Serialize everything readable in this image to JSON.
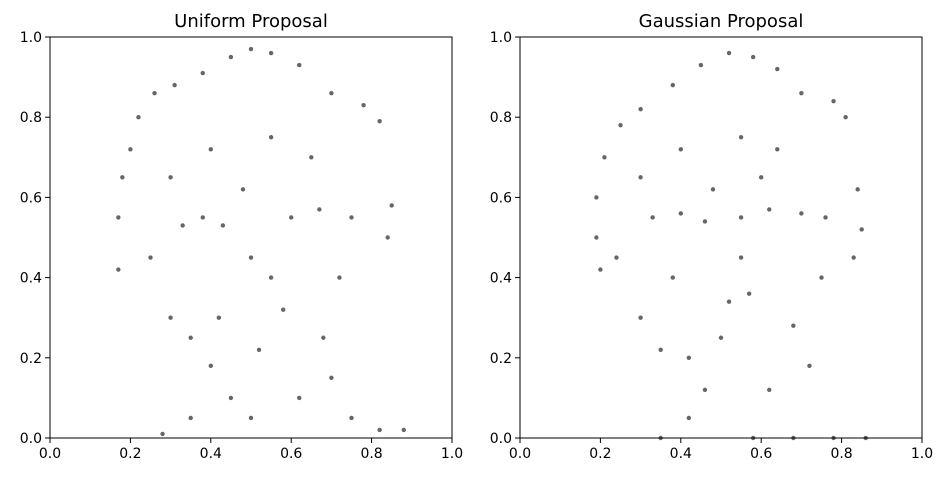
{
  "chart_data": [
    {
      "type": "scatter",
      "title": "Uniform Proposal",
      "xlabel": "",
      "ylabel": "",
      "xlim": [
        0.0,
        1.0
      ],
      "ylim": [
        0.0,
        1.0
      ],
      "x_ticks": [
        "0.0",
        "0.2",
        "0.4",
        "0.6",
        "0.8",
        "1.0"
      ],
      "y_ticks": [
        "0.0",
        "0.2",
        "0.4",
        "0.6",
        "0.8",
        "1.0"
      ],
      "grid": false,
      "marker_color": "#000000",
      "marker_alpha": 0.6,
      "series": [
        {
          "points": [
            [
              0.45,
              0.95
            ],
            [
              0.5,
              0.97
            ],
            [
              0.55,
              0.96
            ],
            [
              0.62,
              0.93
            ],
            [
              0.38,
              0.91
            ],
            [
              0.31,
              0.88
            ],
            [
              0.26,
              0.86
            ],
            [
              0.7,
              0.86
            ],
            [
              0.78,
              0.83
            ],
            [
              0.82,
              0.79
            ],
            [
              0.22,
              0.8
            ],
            [
              0.2,
              0.72
            ],
            [
              0.18,
              0.65
            ],
            [
              0.17,
              0.55
            ],
            [
              0.17,
              0.42
            ],
            [
              0.85,
              0.58
            ],
            [
              0.84,
              0.5
            ],
            [
              0.33,
              0.53
            ],
            [
              0.38,
              0.55
            ],
            [
              0.43,
              0.53
            ],
            [
              0.6,
              0.55
            ],
            [
              0.67,
              0.57
            ],
            [
              0.75,
              0.55
            ],
            [
              0.5,
              0.45
            ],
            [
              0.55,
              0.4
            ],
            [
              0.58,
              0.32
            ],
            [
              0.52,
              0.22
            ],
            [
              0.4,
              0.18
            ],
            [
              0.35,
              0.25
            ],
            [
              0.3,
              0.3
            ],
            [
              0.68,
              0.25
            ],
            [
              0.7,
              0.15
            ],
            [
              0.45,
              0.1
            ],
            [
              0.5,
              0.05
            ],
            [
              0.28,
              0.01
            ],
            [
              0.35,
              0.05
            ],
            [
              0.75,
              0.05
            ],
            [
              0.82,
              0.02
            ],
            [
              0.88,
              0.02
            ],
            [
              0.65,
              0.7
            ],
            [
              0.55,
              0.75
            ],
            [
              0.4,
              0.72
            ],
            [
              0.3,
              0.65
            ],
            [
              0.25,
              0.45
            ],
            [
              0.72,
              0.4
            ],
            [
              0.62,
              0.1
            ],
            [
              0.42,
              0.3
            ],
            [
              0.48,
              0.62
            ]
          ]
        }
      ]
    },
    {
      "type": "scatter",
      "title": "Gaussian Proposal",
      "xlabel": "",
      "ylabel": "",
      "xlim": [
        0.0,
        1.0
      ],
      "ylim": [
        0.0,
        1.0
      ],
      "x_ticks": [
        "0.0",
        "0.2",
        "0.4",
        "0.6",
        "0.8",
        "1.0"
      ],
      "y_ticks": [
        "0.0",
        "0.2",
        "0.4",
        "0.6",
        "0.8",
        "1.0"
      ],
      "grid": false,
      "marker_color": "#000000",
      "marker_alpha": 0.6,
      "series": [
        {
          "points": [
            [
              0.45,
              0.93
            ],
            [
              0.52,
              0.96
            ],
            [
              0.58,
              0.95
            ],
            [
              0.64,
              0.92
            ],
            [
              0.38,
              0.88
            ],
            [
              0.3,
              0.82
            ],
            [
              0.25,
              0.78
            ],
            [
              0.7,
              0.86
            ],
            [
              0.78,
              0.84
            ],
            [
              0.81,
              0.8
            ],
            [
              0.21,
              0.7
            ],
            [
              0.19,
              0.6
            ],
            [
              0.19,
              0.5
            ],
            [
              0.2,
              0.42
            ],
            [
              0.84,
              0.62
            ],
            [
              0.85,
              0.52
            ],
            [
              0.83,
              0.45
            ],
            [
              0.33,
              0.55
            ],
            [
              0.4,
              0.56
            ],
            [
              0.46,
              0.54
            ],
            [
              0.55,
              0.55
            ],
            [
              0.62,
              0.57
            ],
            [
              0.7,
              0.56
            ],
            [
              0.76,
              0.55
            ],
            [
              0.55,
              0.45
            ],
            [
              0.57,
              0.36
            ],
            [
              0.52,
              0.34
            ],
            [
              0.5,
              0.25
            ],
            [
              0.42,
              0.2
            ],
            [
              0.35,
              0.22
            ],
            [
              0.3,
              0.3
            ],
            [
              0.68,
              0.28
            ],
            [
              0.72,
              0.18
            ],
            [
              0.62,
              0.12
            ],
            [
              0.46,
              0.12
            ],
            [
              0.42,
              0.05
            ],
            [
              0.35,
              0.0
            ],
            [
              0.58,
              0.0
            ],
            [
              0.68,
              0.0
            ],
            [
              0.78,
              0.0
            ],
            [
              0.86,
              0.0
            ],
            [
              0.64,
              0.72
            ],
            [
              0.55,
              0.75
            ],
            [
              0.4,
              0.72
            ],
            [
              0.3,
              0.65
            ],
            [
              0.24,
              0.45
            ],
            [
              0.75,
              0.4
            ],
            [
              0.48,
              0.62
            ],
            [
              0.6,
              0.65
            ],
            [
              0.38,
              0.4
            ]
          ]
        }
      ]
    }
  ]
}
